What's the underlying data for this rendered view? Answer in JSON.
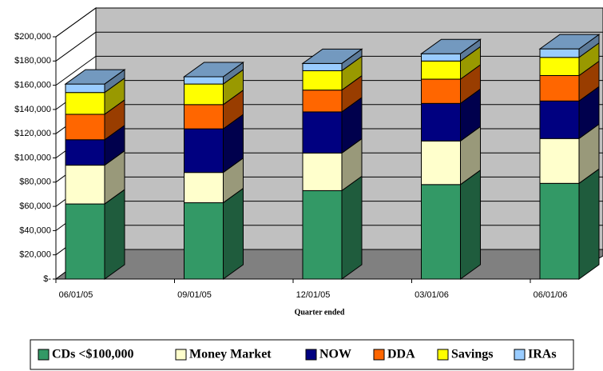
{
  "chart_data": {
    "type": "bar3d_stacked",
    "x_label": "Quarter ended",
    "categories": [
      "06/01/05",
      "09/01/05",
      "12/01/05",
      "03/01/06",
      "06/01/06"
    ],
    "series": [
      {
        "name": "CDs <$100,000",
        "color": "#339966",
        "values": [
          62000,
          63000,
          73000,
          78000,
          79000
        ]
      },
      {
        "name": "Money Market",
        "color": "#ffffcc",
        "values": [
          32000,
          25000,
          31000,
          36000,
          37000
        ]
      },
      {
        "name": "NOW",
        "color": "#000080",
        "values": [
          21000,
          36000,
          34000,
          31000,
          31000
        ]
      },
      {
        "name": "DDA",
        "color": "#ff6600",
        "values": [
          21000,
          20000,
          18000,
          20000,
          21000
        ]
      },
      {
        "name": "Savings",
        "color": "#ffff00",
        "values": [
          18000,
          17000,
          16000,
          15000,
          15000
        ]
      },
      {
        "name": "IRAs",
        "color": "#99ccff",
        "values": [
          7000,
          6000,
          6000,
          6000,
          7000
        ]
      }
    ],
    "ylim": [
      0,
      200000
    ],
    "yticks": [
      {
        "value": 0,
        "label": "$-"
      },
      {
        "value": 20000,
        "label": "$20,000"
      },
      {
        "value": 40000,
        "label": "$40,000"
      },
      {
        "value": 60000,
        "label": "$60,000"
      },
      {
        "value": 80000,
        "label": "$80,000"
      },
      {
        "value": 100000,
        "label": "$100,000"
      },
      {
        "value": 120000,
        "label": "$120,000"
      },
      {
        "value": 140000,
        "label": "$140,000"
      },
      {
        "value": 160000,
        "label": "$160,000"
      },
      {
        "value": 180000,
        "label": "$180,000"
      },
      {
        "value": 200000,
        "label": "$200,000"
      }
    ],
    "grid": true,
    "legend": "bottom"
  }
}
